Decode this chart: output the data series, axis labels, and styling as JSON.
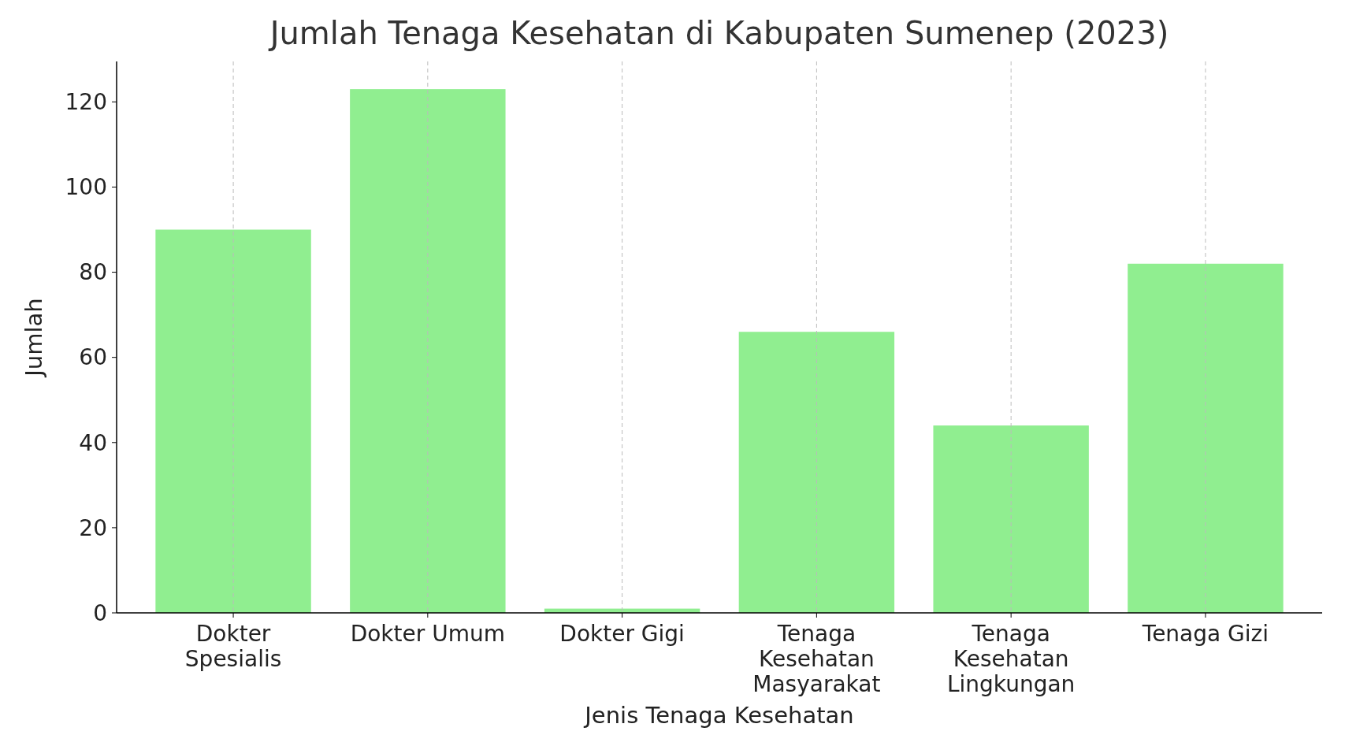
{
  "chart_data": {
    "type": "bar",
    "title": "Jumlah Tenaga Kesehatan di Kabupaten Sumenep (2023)",
    "xlabel": "Jenis Tenaga Kesehatan",
    "ylabel": "Jumlah",
    "categories": [
      "Dokter Spesialis",
      "Dokter Umum",
      "Dokter Gigi",
      "Tenaga Kesehatan Masyarakat",
      "Tenaga Kesehatan Lingkungan",
      "Tenaga Gizi"
    ],
    "values": [
      90,
      123,
      1,
      66,
      44,
      82
    ],
    "color": "#90ee90",
    "ylim": [
      0,
      129.5
    ],
    "yticks": [
      0,
      20,
      40,
      60,
      80,
      100,
      120
    ],
    "grid": "x"
  }
}
